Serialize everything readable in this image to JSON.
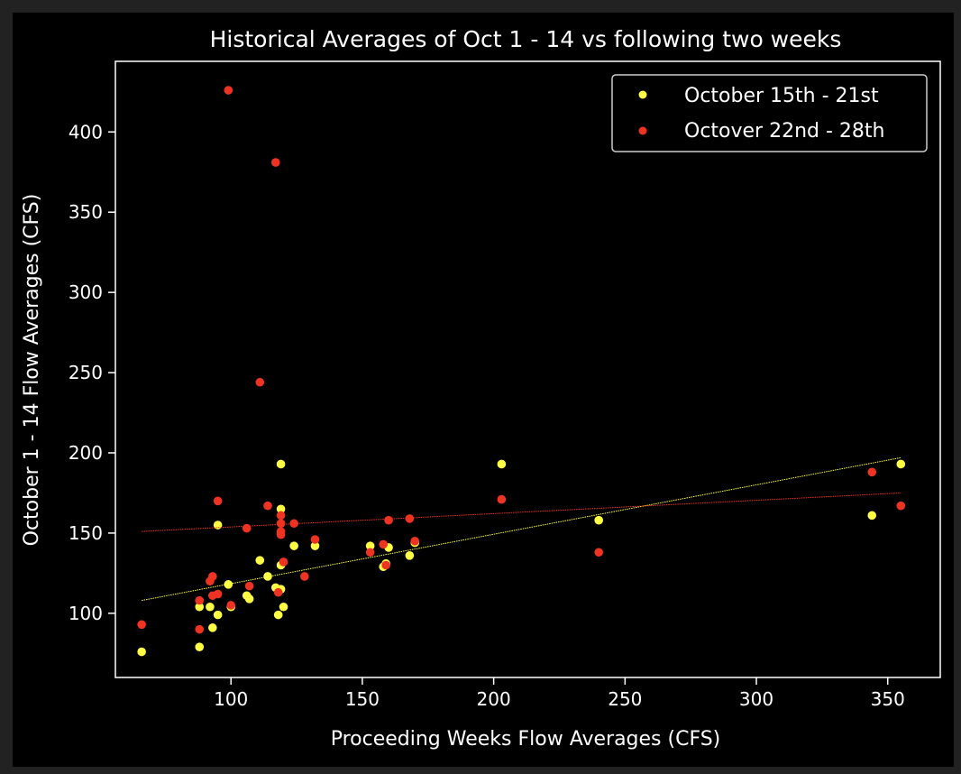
{
  "chart_data": {
    "type": "scatter",
    "title": "Historical Averages of Oct 1 - 14 vs following two weeks",
    "xlabel": "Proceeding Weeks Flow Averages (CFS)",
    "ylabel": "October 1 - 14 Flow Averages (CFS)",
    "xlim": [
      56,
      370
    ],
    "ylim": [
      60,
      444
    ],
    "xticks": [
      100,
      150,
      200,
      250,
      300,
      350
    ],
    "yticks": [
      100,
      150,
      200,
      250,
      300,
      350,
      400
    ],
    "xtick_labels": [
      "100",
      "150",
      "200",
      "250",
      "300",
      "350"
    ],
    "ytick_labels": [
      "100",
      "150",
      "200",
      "250",
      "300",
      "350",
      "400"
    ],
    "grid": false,
    "legend_position": "top-right",
    "background": "#000000",
    "series": [
      {
        "name": "October 15th - 21st",
        "color": "#ffff44",
        "trendline": {
          "x": [
            66,
            355
          ],
          "y": [
            108,
            197
          ]
        },
        "points": [
          {
            "x": 66,
            "y": 76
          },
          {
            "x": 88,
            "y": 104
          },
          {
            "x": 88,
            "y": 79
          },
          {
            "x": 92,
            "y": 104
          },
          {
            "x": 93,
            "y": 91
          },
          {
            "x": 95,
            "y": 99
          },
          {
            "x": 95,
            "y": 155
          },
          {
            "x": 99,
            "y": 118
          },
          {
            "x": 100,
            "y": 104
          },
          {
            "x": 106,
            "y": 111
          },
          {
            "x": 107,
            "y": 109
          },
          {
            "x": 111,
            "y": 133
          },
          {
            "x": 114,
            "y": 123
          },
          {
            "x": 117,
            "y": 116
          },
          {
            "x": 118,
            "y": 99
          },
          {
            "x": 119,
            "y": 115
          },
          {
            "x": 119,
            "y": 130
          },
          {
            "x": 119,
            "y": 165
          },
          {
            "x": 119,
            "y": 193
          },
          {
            "x": 120,
            "y": 104
          },
          {
            "x": 124,
            "y": 142
          },
          {
            "x": 132,
            "y": 142
          },
          {
            "x": 153,
            "y": 142
          },
          {
            "x": 158,
            "y": 129
          },
          {
            "x": 159,
            "y": 131
          },
          {
            "x": 160,
            "y": 141
          },
          {
            "x": 168,
            "y": 136
          },
          {
            "x": 170,
            "y": 144
          },
          {
            "x": 203,
            "y": 193
          },
          {
            "x": 240,
            "y": 158
          },
          {
            "x": 344,
            "y": 161
          },
          {
            "x": 355,
            "y": 193
          }
        ]
      },
      {
        "name": "Octover 22nd - 28th",
        "color": "#ee3322",
        "trendline": {
          "x": [
            66,
            355
          ],
          "y": [
            151,
            175
          ]
        },
        "points": [
          {
            "x": 66,
            "y": 93
          },
          {
            "x": 88,
            "y": 108
          },
          {
            "x": 88,
            "y": 90
          },
          {
            "x": 92,
            "y": 120
          },
          {
            "x": 93,
            "y": 123
          },
          {
            "x": 93,
            "y": 111
          },
          {
            "x": 95,
            "y": 112
          },
          {
            "x": 95,
            "y": 170
          },
          {
            "x": 99,
            "y": 426
          },
          {
            "x": 100,
            "y": 105
          },
          {
            "x": 106,
            "y": 153
          },
          {
            "x": 107,
            "y": 117
          },
          {
            "x": 111,
            "y": 244
          },
          {
            "x": 114,
            "y": 167
          },
          {
            "x": 117,
            "y": 381
          },
          {
            "x": 118,
            "y": 113
          },
          {
            "x": 119,
            "y": 161
          },
          {
            "x": 119,
            "y": 156
          },
          {
            "x": 119,
            "y": 151
          },
          {
            "x": 119,
            "y": 149
          },
          {
            "x": 120,
            "y": 132
          },
          {
            "x": 124,
            "y": 156
          },
          {
            "x": 128,
            "y": 123
          },
          {
            "x": 132,
            "y": 146
          },
          {
            "x": 153,
            "y": 138
          },
          {
            "x": 158,
            "y": 143
          },
          {
            "x": 159,
            "y": 130
          },
          {
            "x": 160,
            "y": 158
          },
          {
            "x": 168,
            "y": 159
          },
          {
            "x": 170,
            "y": 145
          },
          {
            "x": 203,
            "y": 171
          },
          {
            "x": 240,
            "y": 138
          },
          {
            "x": 344,
            "y": 188
          },
          {
            "x": 355,
            "y": 167
          }
        ]
      }
    ]
  }
}
